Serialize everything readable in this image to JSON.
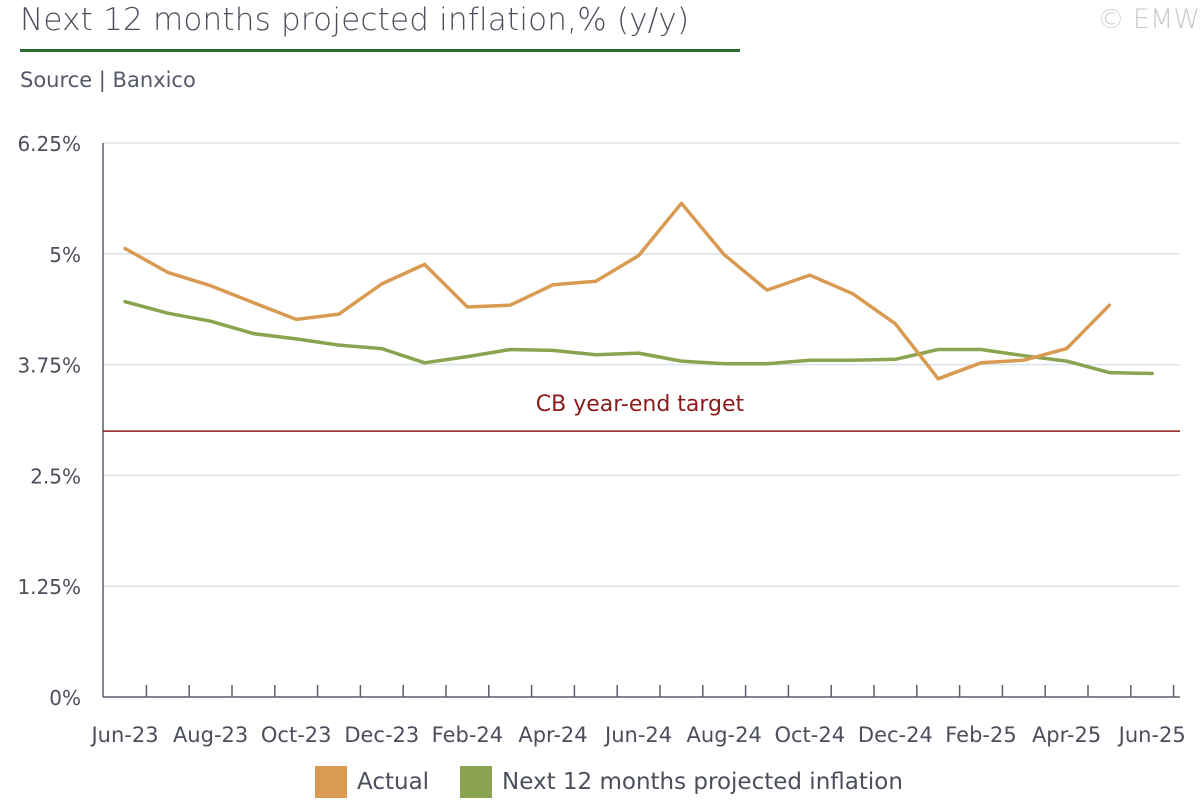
{
  "header": {
    "title": "Next 12 months projected inflation,% (y/y)",
    "copyright": "© EMW",
    "source": "Source | Banxico"
  },
  "colors": {
    "actual": "#d99a52",
    "projected": "#8aa34f",
    "target": "#8b1a1a",
    "grid": "#d9e3ec",
    "axis": "#5a5e6b",
    "title_rule": "#2e6b2e"
  },
  "chart_data": {
    "type": "line",
    "title": "Next 12 months projected inflation,% (y/y)",
    "xlabel": "",
    "ylabel": "",
    "ylim": [
      0,
      6.25
    ],
    "yticks": [
      0,
      1.25,
      2.5,
      3.75,
      5,
      6.25
    ],
    "ytick_labels": [
      "0%",
      "1.25%",
      "2.5%",
      "3.75%",
      "5%",
      "6.25%"
    ],
    "x": [
      "Jun-23",
      "Jul-23",
      "Aug-23",
      "Sep-23",
      "Oct-23",
      "Nov-23",
      "Dec-23",
      "Jan-24",
      "Feb-24",
      "Mar-24",
      "Apr-24",
      "May-24",
      "Jun-24",
      "Jul-24",
      "Aug-24",
      "Sep-24",
      "Oct-24",
      "Nov-24",
      "Dec-24",
      "Jan-25",
      "Feb-25",
      "Mar-25",
      "Apr-25",
      "May-25",
      "Jun-25"
    ],
    "xtick_labels": [
      "Jun-23",
      "Aug-23",
      "Oct-23",
      "Dec-23",
      "Feb-24",
      "Apr-24",
      "Jun-24",
      "Aug-24",
      "Oct-24",
      "Dec-24",
      "Feb-25",
      "Apr-25",
      "Jun-25"
    ],
    "series": [
      {
        "name": "Actual",
        "color": "#d99a52",
        "values": [
          5.06,
          4.79,
          4.64,
          4.45,
          4.26,
          4.32,
          4.66,
          4.88,
          4.4,
          4.42,
          4.65,
          4.69,
          4.98,
          5.57,
          4.99,
          4.59,
          4.76,
          4.55,
          4.21,
          3.59,
          3.77,
          3.8,
          3.93,
          4.42,
          null
        ]
      },
      {
        "name": "Next 12 months projected inflation",
        "color": "#8aa34f",
        "values": [
          4.46,
          4.33,
          4.24,
          4.1,
          4.04,
          3.97,
          3.93,
          3.77,
          3.84,
          3.92,
          3.91,
          3.86,
          3.88,
          3.79,
          3.76,
          3.76,
          3.8,
          3.8,
          3.81,
          3.92,
          3.92,
          3.85,
          3.79,
          3.66,
          3.65
        ]
      }
    ],
    "reference_lines": [
      {
        "label": "CB year-end target",
        "value": 3.0,
        "color": "#8b1a1a"
      }
    ],
    "grid": true,
    "legend": "bottom"
  }
}
